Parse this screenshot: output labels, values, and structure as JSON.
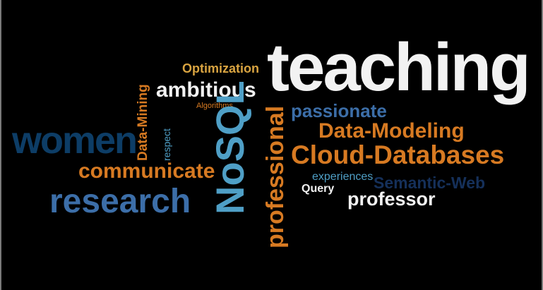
{
  "palette": {
    "background": "#000000",
    "white": "#f2f2f2",
    "orange": "#d77a22",
    "gold": "#d9a441",
    "light_blue": "#4f9fc6",
    "steel_blue": "#3c6ea8",
    "navy": "#0d3d66",
    "dark_navy": "#15305a"
  },
  "words": [
    {
      "id": "teaching",
      "text": "teaching",
      "color": "#f2f2f2",
      "vertical": false
    },
    {
      "id": "ambitious",
      "text": "ambitious",
      "color": "#f2f2f2",
      "vertical": false
    },
    {
      "id": "optimization",
      "text": "Optimization",
      "color": "#d9a441",
      "vertical": false
    },
    {
      "id": "algorithms",
      "text": "Algorithms",
      "color": "#d77a22",
      "vertical": false
    },
    {
      "id": "datamining",
      "text": "Data-Mining",
      "color": "#d77a22",
      "vertical": true
    },
    {
      "id": "respect",
      "text": "respect",
      "color": "#4f9fc6",
      "vertical": true
    },
    {
      "id": "women",
      "text": "women",
      "color": "#0d3d66",
      "vertical": false
    },
    {
      "id": "communicate",
      "text": "communicate",
      "color": "#d77a22",
      "vertical": false
    },
    {
      "id": "research",
      "text": "research",
      "color": "#3c6ea8",
      "vertical": false
    },
    {
      "id": "nosql",
      "text": "NoSQL",
      "color": "#4f9fc6",
      "vertical": true
    },
    {
      "id": "professional",
      "text": "professional",
      "color": "#d77a22",
      "vertical": true
    },
    {
      "id": "passionate",
      "text": "passionate",
      "color": "#3c6ea8",
      "vertical": false
    },
    {
      "id": "datamodeling",
      "text": "Data-Modeling",
      "color": "#d77a22",
      "vertical": false
    },
    {
      "id": "clouddb",
      "text": "Cloud-Databases",
      "color": "#d77a22",
      "vertical": false
    },
    {
      "id": "experiences",
      "text": "experiences",
      "color": "#4f9fc6",
      "vertical": false
    },
    {
      "id": "semweb",
      "text": "Semantic-Web",
      "color": "#15305a",
      "vertical": false
    },
    {
      "id": "query",
      "text": "Query",
      "color": "#f2f2f2",
      "vertical": false
    },
    {
      "id": "professor",
      "text": "professor",
      "color": "#f2f2f2",
      "vertical": false
    }
  ]
}
